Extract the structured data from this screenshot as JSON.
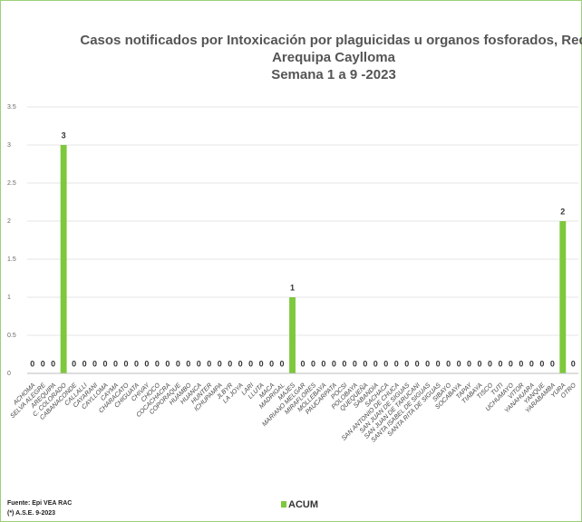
{
  "chart_data": {
    "type": "bar",
    "title": [
      "Casos notificados por Intoxicación por plaguicidas u organos fosforados, Red",
      "Arequipa Caylloma",
      "Semana 1 a 9 -2023"
    ],
    "categories": [
      "ACHOMA",
      "SELVA ALEGRE",
      "AREQUIPA",
      "C. COLORADO",
      "CABANACONDE",
      "CALLALLI",
      "CAYARANI",
      "CAYLLOMA",
      "CAYMA",
      "CHARACATO",
      "CHIGUATA",
      "CHIVAY",
      "CHOCO",
      "COCACHACRA",
      "COPORAQUE",
      "HUAMBO",
      "HUANCA",
      "HUNTER",
      "ICHUPAMPA",
      "JLBYR",
      "LA JOYA",
      "LARI",
      "LLUTA",
      "MACA",
      "MADRIGAL",
      "MAJES",
      "MARIANO MELGAR",
      "MIRAFLORES",
      "MOLLEBAYA",
      "PAUCARPATA",
      "POCSI",
      "POLOBAYA",
      "QUEQUEÑA",
      "SABANDIA",
      "SACHACA",
      "SAN ANTONIO DE CHUCA",
      "SAN JUAN DE SIGUAS",
      "SAN JUAN DE TARUCANI",
      "SANTA ISABEL DE SIGUAS",
      "SANTA RITA DE SIGUAS",
      "SIBAYO",
      "SOCABAYA",
      "TAPAY",
      "TIABAYA",
      "TISCO",
      "TUTI",
      "UCHUMAYO",
      "VITOR",
      "YANAHUARA",
      "YANQUE",
      "YARABAMBA",
      "YURA",
      "OTRO"
    ],
    "series": [
      {
        "name": "ACUM",
        "color": "#7dc83c",
        "values": [
          0,
          0,
          0,
          3,
          0,
          0,
          0,
          0,
          0,
          0,
          0,
          0,
          0,
          0,
          0,
          0,
          0,
          0,
          0,
          0,
          0,
          0,
          0,
          0,
          0,
          1,
          0,
          0,
          0,
          0,
          0,
          0,
          0,
          0,
          0,
          0,
          0,
          0,
          0,
          0,
          0,
          0,
          0,
          0,
          0,
          0,
          0,
          0,
          0,
          0,
          0,
          2,
          0
        ]
      }
    ],
    "ylim": [
      0,
      3.5
    ],
    "yticks": [
      0,
      0.5,
      1,
      1.5,
      2,
      2.5,
      3,
      3.5
    ],
    "grid": true,
    "footnotes": [
      "Fuente: Epi VEA RAC",
      "(*) A.S.E. 9-2023"
    ]
  }
}
